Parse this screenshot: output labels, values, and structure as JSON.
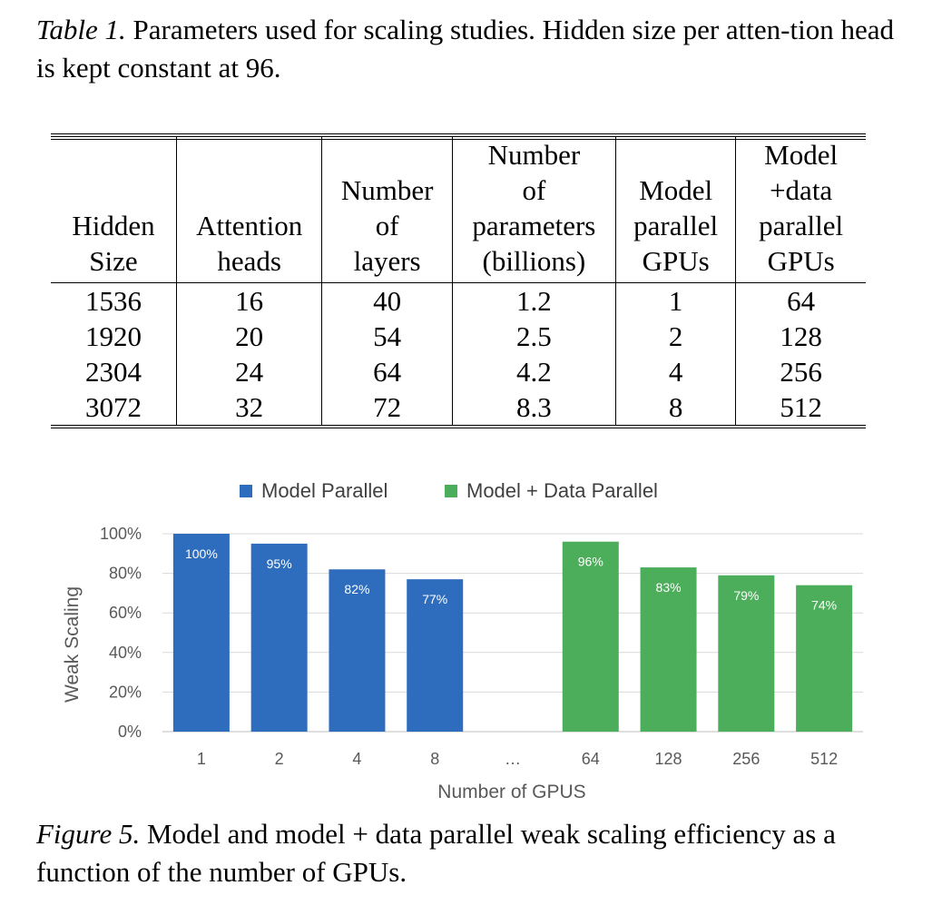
{
  "table_caption": {
    "lead": "Table 1.",
    "text": " Parameters used for scaling studies. Hidden size per atten-tion head is kept constant at 96."
  },
  "table": {
    "headers": [
      [
        "Hidden",
        "Size"
      ],
      [
        "Attention",
        "heads"
      ],
      [
        "Number",
        "of",
        "layers"
      ],
      [
        "Number",
        "of",
        "parameters",
        "(billions)"
      ],
      [
        "Model",
        "parallel",
        "GPUs"
      ],
      [
        "Model",
        "+data",
        "parallel",
        "GPUs"
      ]
    ],
    "rows": [
      [
        "1536",
        "16",
        "40",
        "1.2",
        "1",
        "64"
      ],
      [
        "1920",
        "20",
        "54",
        "2.5",
        "2",
        "128"
      ],
      [
        "2304",
        "24",
        "64",
        "4.2",
        "4",
        "256"
      ],
      [
        "3072",
        "32",
        "72",
        "8.3",
        "8",
        "512"
      ]
    ]
  },
  "chart_data": {
    "type": "bar",
    "categories": [
      "1",
      "2",
      "4",
      "8",
      "…",
      "64",
      "128",
      "256",
      "512"
    ],
    "series": [
      {
        "name": "Model Parallel",
        "color": "#2e6dbd",
        "values": [
          100,
          95,
          82,
          77,
          null,
          null,
          null,
          null,
          null
        ],
        "labels": [
          "100%",
          "95%",
          "82%",
          "77%",
          "",
          "",
          "",
          "",
          ""
        ]
      },
      {
        "name": "Model + Data Parallel",
        "color": "#4cae5a",
        "values": [
          null,
          null,
          null,
          null,
          null,
          96,
          83,
          79,
          74
        ],
        "labels": [
          "",
          "",
          "",
          "",
          "",
          "96%",
          "83%",
          "79%",
          "74%"
        ]
      }
    ],
    "xlabel": "Number of GPUS",
    "ylabel": "Weak Scaling",
    "ylim": [
      0,
      100
    ],
    "yticks": [
      "0%",
      "20%",
      "40%",
      "60%",
      "80%",
      "100%"
    ],
    "legend": "top",
    "grid": true
  },
  "figure_caption": {
    "lead": "Figure 5.",
    "text": " Model and model + data parallel weak scaling efficiency as a function of the number of GPUs."
  }
}
